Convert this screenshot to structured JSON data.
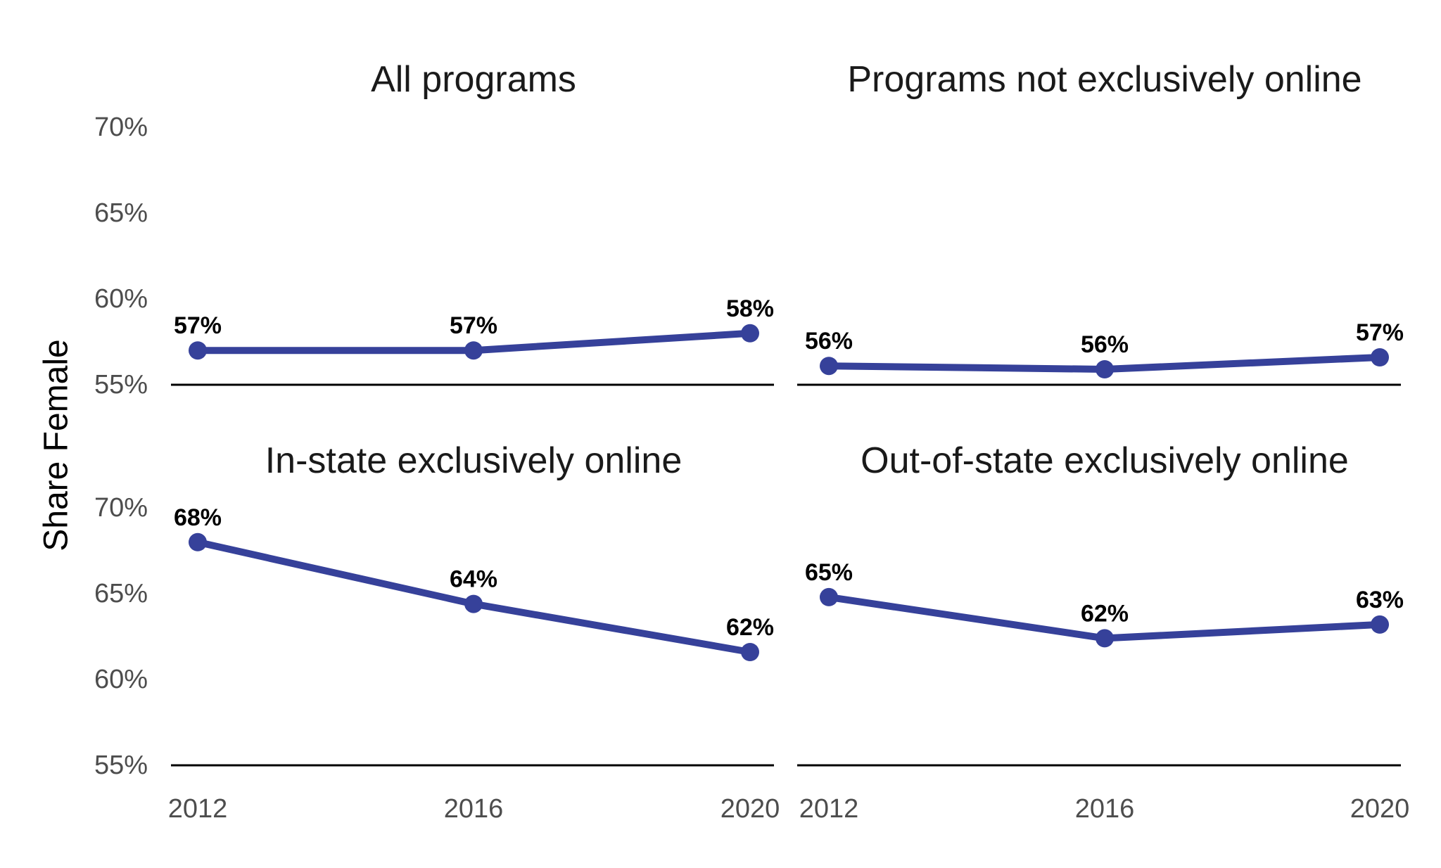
{
  "chart_data": {
    "type": "line",
    "layout": "facet-2x2",
    "y_axis_title": "Share Female",
    "line_color": "#36419a",
    "ylim": [
      55,
      70
    ],
    "y_ticks": [
      55,
      60,
      65,
      70
    ],
    "y_tick_labels": [
      "55%",
      "60%",
      "65%",
      "70%"
    ],
    "x": [
      2012,
      2016,
      2020
    ],
    "x_tick_labels": [
      "2012",
      "2016",
      "2020"
    ],
    "grid": false,
    "legend": "none",
    "panels": [
      {
        "title": "All programs",
        "values": [
          57.0,
          57.0,
          58.0
        ],
        "labels": [
          "57%",
          "57%",
          "58%"
        ]
      },
      {
        "title": "Programs not exclusively online",
        "values": [
          56.1,
          55.9,
          56.6
        ],
        "labels": [
          "56%",
          "56%",
          "57%"
        ]
      },
      {
        "title": "In-state exclusively online",
        "values": [
          68.0,
          64.4,
          61.6
        ],
        "labels": [
          "68%",
          "64%",
          "62%"
        ]
      },
      {
        "title": "Out-of-state exclusively online",
        "values": [
          64.8,
          62.4,
          63.2
        ],
        "labels": [
          "65%",
          "62%",
          "63%"
        ]
      }
    ]
  }
}
